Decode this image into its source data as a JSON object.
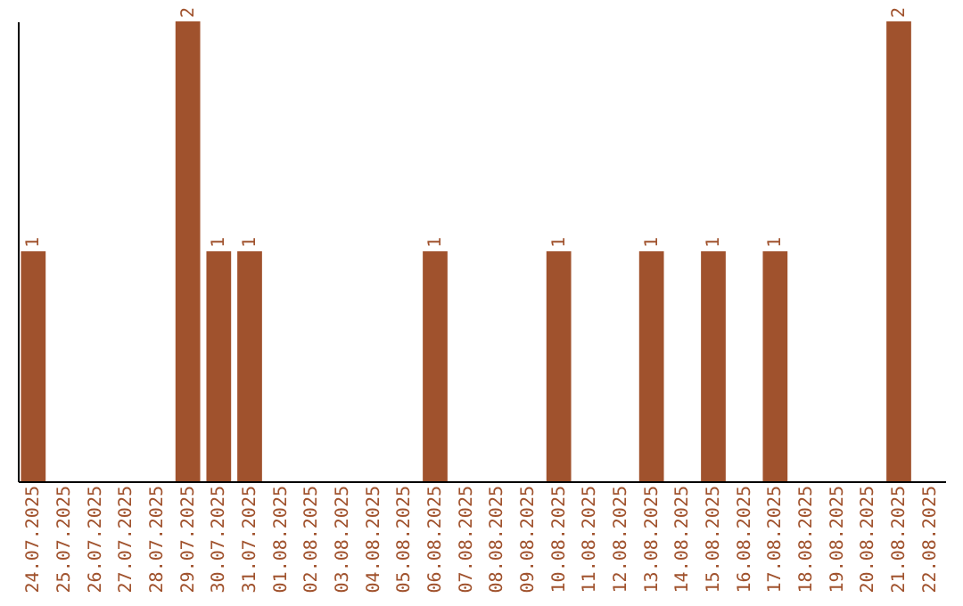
{
  "chart_data": {
    "type": "bar",
    "categories": [
      "24.07.2025",
      "25.07.2025",
      "26.07.2025",
      "27.07.2025",
      "28.07.2025",
      "29.07.2025",
      "30.07.2025",
      "31.07.2025",
      "01.08.2025",
      "02.08.2025",
      "03.08.2025",
      "04.08.2025",
      "05.08.2025",
      "06.08.2025",
      "07.08.2025",
      "08.08.2025",
      "09.08.2025",
      "10.08.2025",
      "11.08.2025",
      "12.08.2025",
      "13.08.2025",
      "14.08.2025",
      "15.08.2025",
      "16.08.2025",
      "17.08.2025",
      "18.08.2025",
      "19.08.2025",
      "20.08.2025",
      "21.08.2025",
      "22.08.2025"
    ],
    "values": [
      1,
      0,
      0,
      0,
      0,
      2,
      1,
      1,
      0,
      0,
      0,
      0,
      0,
      1,
      0,
      0,
      0,
      1,
      0,
      0,
      1,
      0,
      1,
      0,
      1,
      0,
      0,
      0,
      2,
      0
    ],
    "value_labels": [
      "1",
      null,
      null,
      null,
      null,
      "2",
      "1",
      "1",
      null,
      null,
      null,
      null,
      null,
      "1",
      null,
      null,
      null,
      "1",
      null,
      null,
      "1",
      null,
      "1",
      null,
      "1",
      null,
      null,
      null,
      "2",
      null
    ],
    "color": "#a0522d",
    "tick_labels": "x",
    "grid": false
  }
}
